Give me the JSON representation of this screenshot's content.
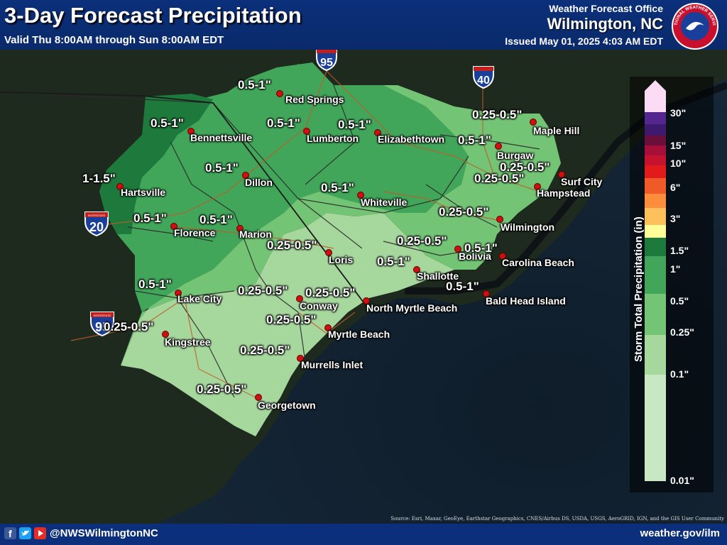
{
  "header": {
    "title": "3-Day Forecast Precipitation",
    "valid": "Valid Thu 8:00AM through Sun 8:00AM EDT",
    "office": "Weather Forecast Office",
    "location": "Wilmington, NC",
    "issued": "Issued May 01, 2025 4:03 AM EDT"
  },
  "footer": {
    "handle": "@NWSWilmingtonNC",
    "website": "weather.gov/ilm",
    "credits": "Source: Esri, Maxar, GeoEye, Earthstar Geographics, CNES/Airbus DS, USDA, USGS, AeroGRID, IGN, and the GIS User Community"
  },
  "logo": {
    "text": "NATIONAL WEATHER SERVICE"
  },
  "legend": {
    "title": "Storm Total Precipitation (in)",
    "ticks": [
      "30\"",
      "15\"",
      "10\"",
      "6\"",
      "3\"",
      "1.5\"",
      "1\"",
      "0.5\"",
      "0.25\"",
      "0.1\"",
      "0.01\""
    ],
    "colors": {
      "0.01-0.1": "#c8e8c4",
      "0.1-0.25": "#a6d89e",
      "0.25-0.5": "#74c476",
      "0.5-1": "#41a65a",
      "1-1.5": "#1e7a3c",
      "1.5-3": "#ffff99",
      "3-6": "#fdd05a",
      "6-10": "#fd8d3c",
      "10-15": "#e31a1c",
      "15-30": "#a50f3a",
      "30+": "#54278f",
      "top": "#fbdcf4"
    }
  },
  "highways": {
    "i95": "95",
    "i40": "40",
    "i20": "20",
    "i95b": "95",
    "interstate": "INTERSTATE"
  },
  "cities": {
    "red_springs": "Red Springs",
    "bennettsville": "Bennettsville",
    "lumberton": "Lumberton",
    "elizabethtown": "Elizabethtown",
    "maple_hill": "Maple Hill",
    "burgaw": "Burgaw",
    "surf_city": "Surf City",
    "hampstead": "Hampstead",
    "hartsville": "Hartsville",
    "dillon": "Dillon",
    "whiteville": "Whiteville",
    "wilmington": "Wilmington",
    "florence": "Florence",
    "marion": "Marion",
    "loris": "Loris",
    "bolivia": "Bolivia",
    "carolina_beach": "Carolina Beach",
    "shallotte": "Shallotte",
    "bald_head_island": "Bald Head Island",
    "lake_city": "Lake City",
    "conway": "Conway",
    "north_myrtle_beach": "North Myrtle Beach",
    "myrtle_beach": "Myrtle Beach",
    "kingstree": "Kingstree",
    "murrells_inlet": "Murrells Inlet",
    "georgetown": "Georgetown"
  },
  "amounts": {
    "red_springs": "0.5-1\"",
    "bennettsville": "0.5-1\"",
    "lumberton": "0.5-1\"",
    "elizabethtown": "0.5-1\"",
    "maple_hill": "0.25-0.5\"",
    "burgaw": "0.5-1\"",
    "surf_city": "0.25-0.5\"",
    "hampstead": "0.25-0.5\"",
    "hartsville": "1-1.5\"",
    "dillon": "0.5-1\"",
    "whiteville": "0.5-1\"",
    "wilmington": "0.25-0.5\"",
    "florence": "0.5-1\"",
    "marion": "0.5-1\"",
    "loris": "0.25-0.5\"",
    "bolivia": "0.25-0.5\"",
    "carolina_beach": "0.5-1\"",
    "shallotte": "0.5-1\"",
    "bald_head_island": "0.5-1\"",
    "lake_city": "0.5-1\"",
    "conway": "0.25-0.5\"",
    "north_myrtle_beach": "0.25-0.5\"",
    "myrtle_beach": "0.25-0.5\"",
    "kingstree": "0.25-0.5\"",
    "murrells_inlet": "0.25-0.5\"",
    "georgetown": "0.25-0.5\""
  }
}
